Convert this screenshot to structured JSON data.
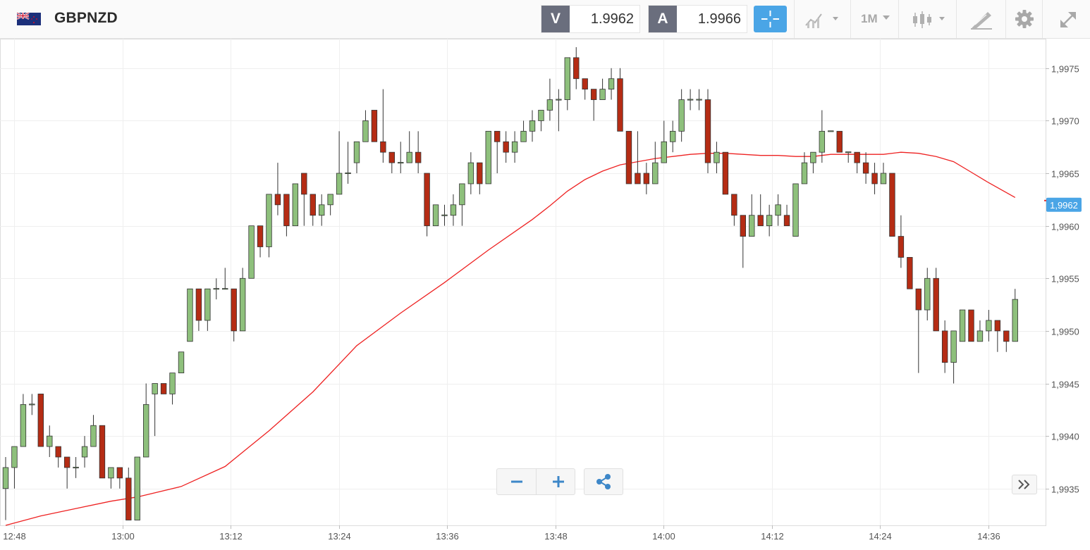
{
  "header": {
    "symbol": "GBPNZD",
    "flag_icon": "gb-nz-flag-icon",
    "sell": {
      "label": "V",
      "value": "1.9962"
    },
    "buy": {
      "label": "A",
      "value": "1.9966"
    },
    "timeframe": "1M",
    "tools": [
      "crosshair-icon",
      "indicator-icon",
      "candlestick-icon",
      "drawing-icon",
      "gear-icon",
      "expand-icon"
    ]
  },
  "colors": {
    "up": "#8ec07c",
    "down": "#b52c14",
    "ma": "#ee2222",
    "accent": "#4aa5e6",
    "price_badge": "#4aa5e6"
  },
  "chart_data": {
    "type": "candlestick",
    "interval": "1M",
    "y_ticks": [
      "1,9935",
      "1,9940",
      "1,9945",
      "1,9950",
      "1,9955",
      "1,9960",
      "1,9965",
      "1,9970",
      "1,9975"
    ],
    "x_ticks": [
      "12:48",
      "13:00",
      "13:12",
      "13:24",
      "13:36",
      "13:48",
      "14:00",
      "14:12",
      "14:24",
      "14:36"
    ],
    "ylim": [
      1.99315,
      1.99778
    ],
    "current_price_label": "1,9962",
    "current_price": 1.9962,
    "candles": [
      [
        1.9935,
        1.9937,
        1.9932,
        1.9938
      ],
      [
        1.9937,
        1.9939,
        1.9935,
        1.9939
      ],
      [
        1.9939,
        1.9943,
        1.9939,
        1.9944
      ],
      [
        1.9943,
        1.9943,
        1.9942,
        1.9944
      ],
      [
        1.9944,
        1.9939,
        1.9939,
        1.9944
      ],
      [
        1.9939,
        1.994,
        1.9938,
        1.9941
      ],
      [
        1.9939,
        1.9938,
        1.9937,
        1.9939
      ],
      [
        1.9938,
        1.9937,
        1.9935,
        1.9938
      ],
      [
        1.9937,
        1.9937,
        1.9936,
        1.9938
      ],
      [
        1.9938,
        1.9939,
        1.9937,
        1.994
      ],
      [
        1.9939,
        1.9941,
        1.9939,
        1.9942
      ],
      [
        1.9941,
        1.9936,
        1.9936,
        1.9941
      ],
      [
        1.9936,
        1.9937,
        1.9935,
        1.9937
      ],
      [
        1.9937,
        1.9936,
        1.9935,
        1.9937
      ],
      [
        1.9936,
        1.9932,
        1.9932,
        1.9937
      ],
      [
        1.9932,
        1.9938,
        1.9932,
        1.9938
      ],
      [
        1.9938,
        1.9943,
        1.9938,
        1.9945
      ],
      [
        1.9944,
        1.9945,
        1.994,
        1.9945
      ],
      [
        1.9945,
        1.9944,
        1.9944,
        1.9945
      ],
      [
        1.9944,
        1.9946,
        1.9943,
        1.9946
      ],
      [
        1.9946,
        1.9948,
        1.9946,
        1.9948
      ],
      [
        1.9949,
        1.9954,
        1.9949,
        1.9954
      ],
      [
        1.9954,
        1.9951,
        1.995,
        1.9954
      ],
      [
        1.9951,
        1.9954,
        1.995,
        1.9954
      ],
      [
        1.9954,
        1.9954,
        1.9953,
        1.9955
      ],
      [
        1.9954,
        1.9954,
        1.9954,
        1.9956
      ],
      [
        1.9954,
        1.995,
        1.9949,
        1.9954
      ],
      [
        1.995,
        1.9955,
        1.995,
        1.9956
      ],
      [
        1.9955,
        1.996,
        1.9955,
        1.996
      ],
      [
        1.996,
        1.9958,
        1.9957,
        1.996
      ],
      [
        1.9958,
        1.9963,
        1.9957,
        1.9963
      ],
      [
        1.9963,
        1.9962,
        1.9961,
        1.9966
      ],
      [
        1.9963,
        1.996,
        1.9959,
        1.9963
      ],
      [
        1.996,
        1.9964,
        1.996,
        1.9964
      ],
      [
        1.9965,
        1.9963,
        1.996,
        1.9965
      ],
      [
        1.9963,
        1.9961,
        1.996,
        1.9963
      ],
      [
        1.9961,
        1.9962,
        1.996,
        1.9963
      ],
      [
        1.9962,
        1.9963,
        1.9961,
        1.9963
      ],
      [
        1.9963,
        1.9965,
        1.9963,
        1.9969
      ],
      [
        1.9965,
        1.9965,
        1.9964,
        1.9968
      ],
      [
        1.9966,
        1.9968,
        1.9965,
        1.9968
      ],
      [
        1.9968,
        1.997,
        1.9968,
        1.9971
      ],
      [
        1.9971,
        1.9968,
        1.9968,
        1.9971
      ],
      [
        1.9968,
        1.9967,
        1.9966,
        1.9973
      ],
      [
        1.9967,
        1.9966,
        1.9965,
        1.9967
      ],
      [
        1.9966,
        1.9966,
        1.9965,
        1.9968
      ],
      [
        1.9966,
        1.9967,
        1.9966,
        1.9969
      ],
      [
        1.9967,
        1.9966,
        1.9965,
        1.9969
      ],
      [
        1.9965,
        1.996,
        1.9959,
        1.9965
      ],
      [
        1.996,
        1.9962,
        1.996,
        1.9962
      ],
      [
        1.9961,
        1.9961,
        1.996,
        1.9962
      ],
      [
        1.9961,
        1.9962,
        1.996,
        1.9963
      ],
      [
        1.9962,
        1.9964,
        1.996,
        1.9964
      ],
      [
        1.9964,
        1.9966,
        1.9963,
        1.9967
      ],
      [
        1.9966,
        1.9964,
        1.9963,
        1.9966
      ],
      [
        1.9964,
        1.9969,
        1.9964,
        1.9969
      ],
      [
        1.9969,
        1.9968,
        1.9965,
        1.9969
      ],
      [
        1.9968,
        1.9967,
        1.9966,
        1.9969
      ],
      [
        1.9967,
        1.9968,
        1.9966,
        1.9969
      ],
      [
        1.9968,
        1.9969,
        1.9968,
        1.997
      ],
      [
        1.9969,
        1.997,
        1.9968,
        1.9971
      ],
      [
        1.997,
        1.9971,
        1.9969,
        1.9971
      ],
      [
        1.9971,
        1.9972,
        1.997,
        1.9974
      ],
      [
        1.9972,
        1.9972,
        1.9969,
        1.9973
      ],
      [
        1.9972,
        1.9976,
        1.9971,
        1.9976
      ],
      [
        1.9976,
        1.9974,
        1.9973,
        1.9977
      ],
      [
        1.9974,
        1.9973,
        1.9972,
        1.9974
      ],
      [
        1.9973,
        1.9972,
        1.997,
        1.9973
      ],
      [
        1.9972,
        1.9973,
        1.9972,
        1.9974
      ],
      [
        1.9973,
        1.9974,
        1.9972,
        1.9975
      ],
      [
        1.9974,
        1.9969,
        1.9969,
        1.9975
      ],
      [
        1.9969,
        1.9964,
        1.9964,
        1.9969
      ],
      [
        1.9965,
        1.9964,
        1.9964,
        1.9969
      ],
      [
        1.9965,
        1.9964,
        1.9963,
        1.9966
      ],
      [
        1.9964,
        1.9966,
        1.9964,
        1.9968
      ],
      [
        1.9966,
        1.9968,
        1.9966,
        1.997
      ],
      [
        1.9968,
        1.9969,
        1.9967,
        1.997
      ],
      [
        1.9969,
        1.9972,
        1.9968,
        1.9973
      ],
      [
        1.9972,
        1.9972,
        1.9971,
        1.9973
      ],
      [
        1.9972,
        1.9972,
        1.9971,
        1.9973
      ],
      [
        1.9972,
        1.9966,
        1.9965,
        1.9973
      ],
      [
        1.9966,
        1.9967,
        1.9965,
        1.9968
      ],
      [
        1.9967,
        1.9963,
        1.9963,
        1.9967
      ],
      [
        1.9963,
        1.9961,
        1.996,
        1.9963
      ],
      [
        1.9961,
        1.9959,
        1.9956,
        1.9961
      ],
      [
        1.9959,
        1.9961,
        1.9959,
        1.9963
      ],
      [
        1.9961,
        1.996,
        1.996,
        1.9963
      ],
      [
        1.996,
        1.9961,
        1.9959,
        1.9962
      ],
      [
        1.9961,
        1.9962,
        1.996,
        1.9963
      ],
      [
        1.9961,
        1.996,
        1.996,
        1.9962
      ],
      [
        1.9959,
        1.9964,
        1.9959,
        1.9964
      ],
      [
        1.9964,
        1.9966,
        1.9964,
        1.9967
      ],
      [
        1.9966,
        1.9967,
        1.9965,
        1.9967
      ],
      [
        1.9967,
        1.9969,
        1.9966,
        1.9971
      ],
      [
        1.9969,
        1.9969,
        1.9969,
        1.9969
      ],
      [
        1.9969,
        1.9967,
        1.9967,
        1.9969
      ],
      [
        1.9967,
        1.9967,
        1.9966,
        1.9967
      ],
      [
        1.9967,
        1.9966,
        1.9965,
        1.9967
      ],
      [
        1.9966,
        1.9965,
        1.9964,
        1.9967
      ],
      [
        1.9965,
        1.9964,
        1.9963,
        1.9966
      ],
      [
        1.9964,
        1.9965,
        1.9964,
        1.9966
      ],
      [
        1.9965,
        1.9959,
        1.9959,
        1.9965
      ],
      [
        1.9959,
        1.9957,
        1.9956,
        1.9961
      ],
      [
        1.9957,
        1.9954,
        1.9954,
        1.9957
      ],
      [
        1.9954,
        1.9952,
        1.9946,
        1.9954
      ],
      [
        1.9952,
        1.9955,
        1.9951,
        1.9956
      ],
      [
        1.9955,
        1.995,
        1.995,
        1.9956
      ],
      [
        1.995,
        1.9947,
        1.9946,
        1.9951
      ],
      [
        1.9947,
        1.995,
        1.9945,
        1.995
      ],
      [
        1.9949,
        1.9952,
        1.9949,
        1.9952
      ],
      [
        1.9952,
        1.9949,
        1.9949,
        1.9952
      ],
      [
        1.9949,
        1.995,
        1.9949,
        1.9951
      ],
      [
        1.995,
        1.9951,
        1.9949,
        1.9952
      ],
      [
        1.9951,
        1.995,
        1.9948,
        1.9951
      ],
      [
        1.995,
        1.9949,
        1.9948,
        1.995
      ],
      [
        1.9949,
        1.9953,
        1.9949,
        1.9954
      ]
    ],
    "moving_average": {
      "x": [
        0,
        4,
        8,
        12,
        15,
        20,
        25,
        30,
        35,
        40,
        45,
        50,
        55,
        60,
        62,
        64,
        66,
        68,
        70,
        72,
        74,
        76,
        78,
        80,
        82,
        84,
        86,
        88,
        90,
        92,
        94,
        96,
        98,
        100,
        102,
        104,
        106,
        108,
        110,
        112,
        115
      ],
      "y": [
        1.99315,
        1.99324,
        1.99331,
        1.99338,
        1.99342,
        1.99352,
        1.99371,
        1.99405,
        1.99442,
        1.99486,
        1.99517,
        1.99546,
        1.99577,
        1.99606,
        1.99619,
        1.99633,
        1.99644,
        1.99652,
        1.99658,
        1.99661,
        1.99664,
        1.99666,
        1.99668,
        1.99669,
        1.99669,
        1.99668,
        1.99667,
        1.99667,
        1.99666,
        1.99666,
        1.99668,
        1.99668,
        1.99668,
        1.99668,
        1.9967,
        1.99669,
        1.99666,
        1.99661,
        1.99651,
        1.99641,
        1.99627
      ]
    }
  },
  "zoom": {
    "minus_icon": "zoom-out-icon",
    "plus_icon": "zoom-in-icon",
    "share_icon": "share-icon"
  },
  "scroll_icon": "scroll-to-latest-icon"
}
